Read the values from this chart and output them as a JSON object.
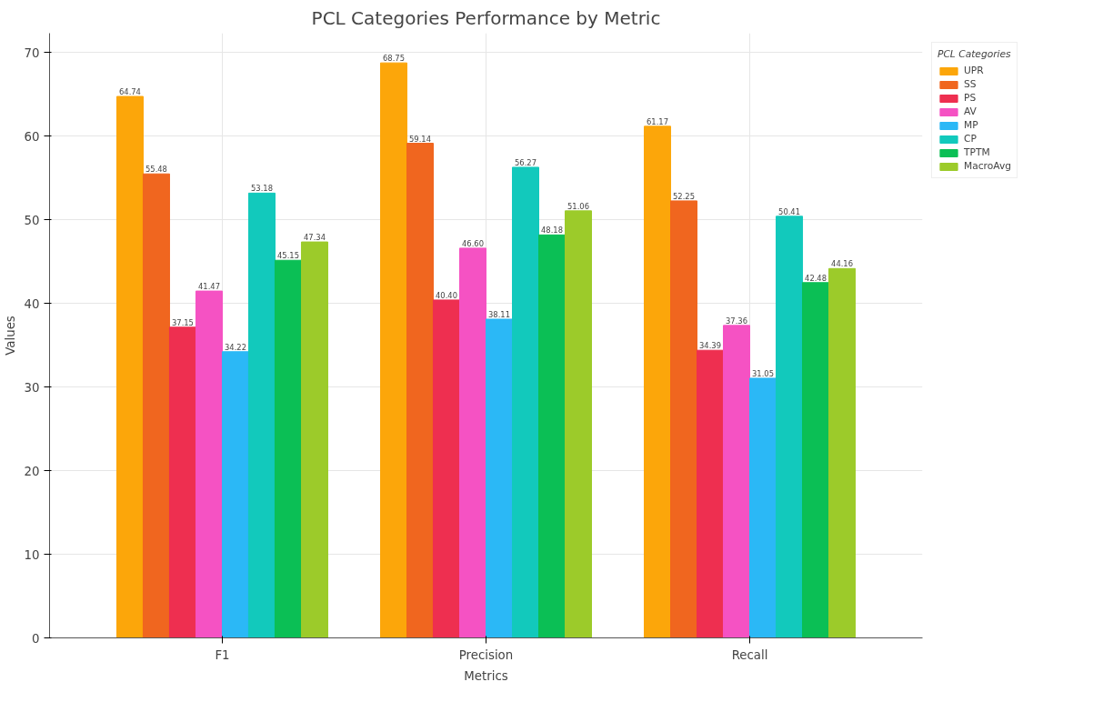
{
  "chart_data": {
    "type": "bar",
    "title": "PCL Categories Performance by Metric",
    "xlabel": "Metrics",
    "ylabel": "Values",
    "legend_title": "PCL Categories",
    "categories": [
      "F1",
      "Precision",
      "Recall"
    ],
    "series": [
      {
        "name": "UPR",
        "color": "#fca60a",
        "values": [
          64.74,
          68.75,
          61.17
        ],
        "value_labels": [
          "64.74",
          "68.75",
          "61.17"
        ]
      },
      {
        "name": "SS",
        "color": "#f0661f",
        "values": [
          55.48,
          59.14,
          52.25
        ],
        "value_labels": [
          "55.48",
          "59.14",
          "52.25"
        ]
      },
      {
        "name": "PS",
        "color": "#ee2f50",
        "values": [
          37.15,
          40.4,
          34.39
        ],
        "value_labels": [
          "37.15",
          "40.40",
          "34.39"
        ]
      },
      {
        "name": "AV",
        "color": "#f552c3",
        "values": [
          41.47,
          46.6,
          37.36
        ],
        "value_labels": [
          "41.47",
          "46.60",
          "37.36"
        ]
      },
      {
        "name": "MP",
        "color": "#2bb8f6",
        "values": [
          34.22,
          38.11,
          31.05
        ],
        "value_labels": [
          "34.22",
          "38.11",
          "31.05"
        ]
      },
      {
        "name": "CP",
        "color": "#12c9bc",
        "values": [
          53.18,
          56.27,
          50.41
        ],
        "value_labels": [
          "53.18",
          "56.27",
          "50.41"
        ]
      },
      {
        "name": "TPTM",
        "color": "#0bbf55",
        "values": [
          45.15,
          48.18,
          42.48
        ],
        "value_labels": [
          "45.15",
          "48.18",
          "42.48"
        ]
      },
      {
        "name": "MacroAvg",
        "color": "#9ccb2a",
        "values": [
          47.34,
          51.06,
          44.16
        ],
        "value_labels": [
          "47.34",
          "51.06",
          "44.16"
        ]
      }
    ],
    "ylim": [
      0,
      72.3
    ],
    "yticks": [
      0,
      10,
      20,
      30,
      40,
      50,
      60,
      70
    ],
    "grid": true,
    "legend": "top right"
  }
}
